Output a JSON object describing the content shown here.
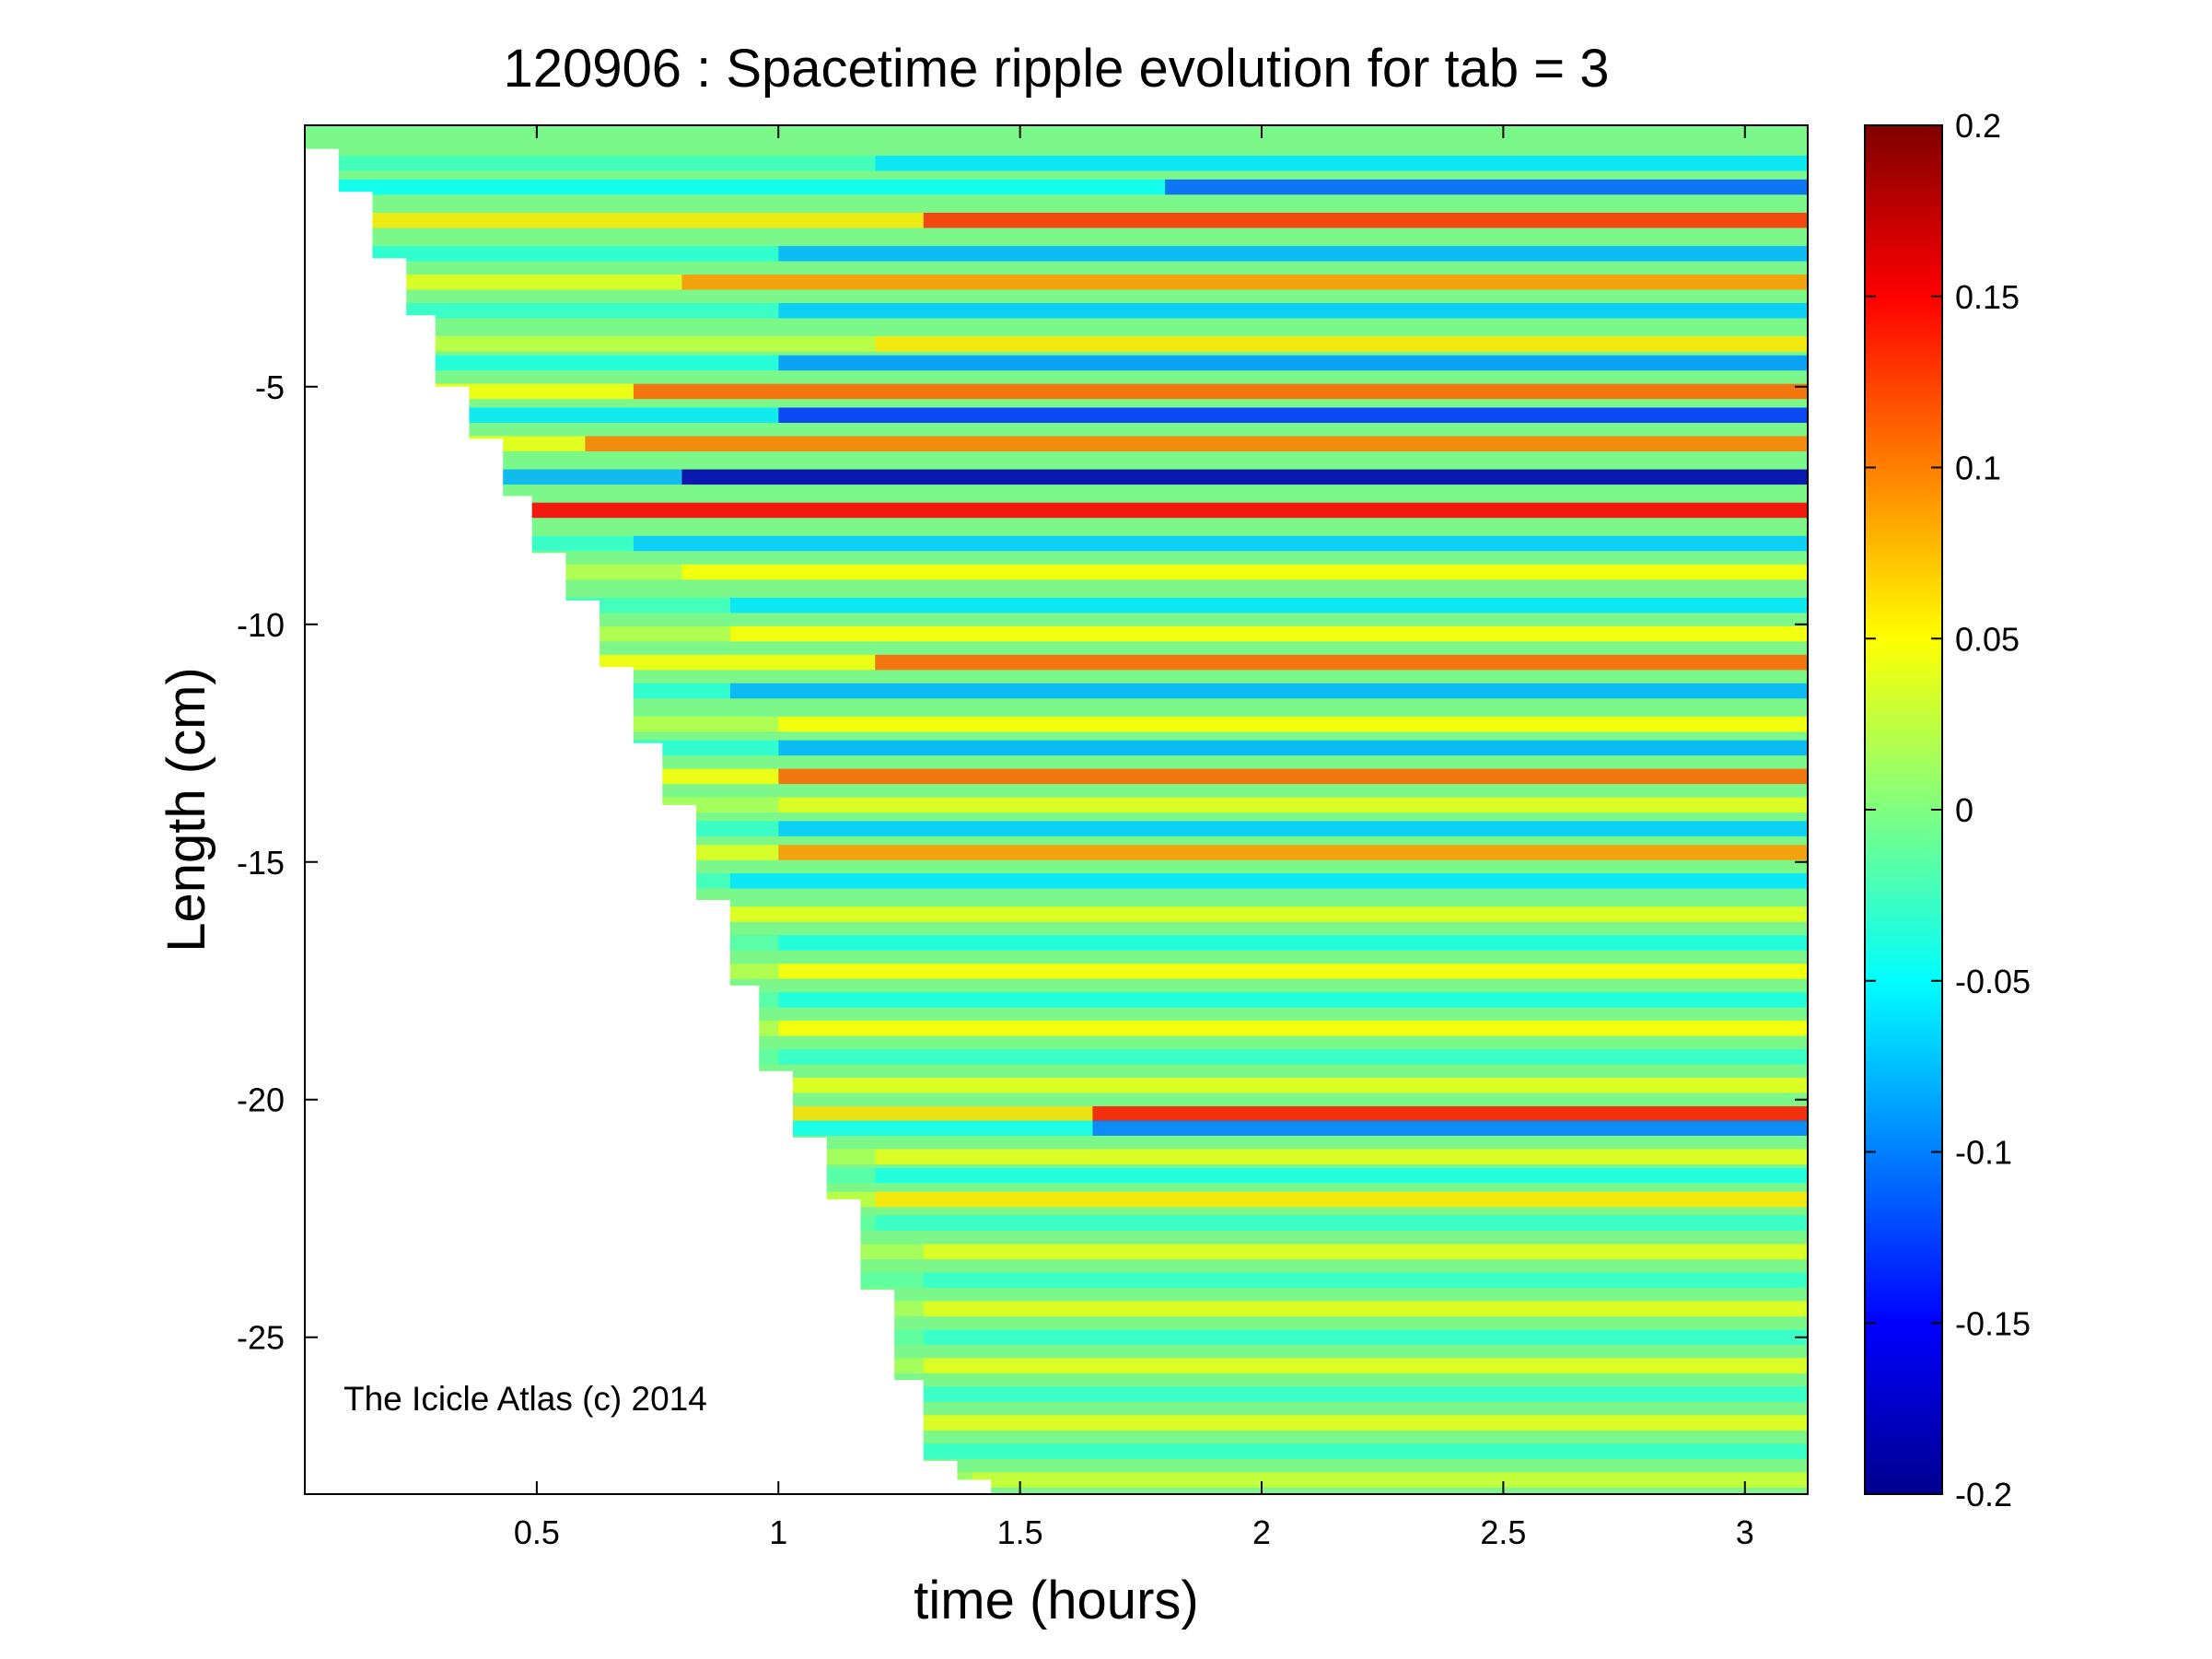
{
  "chart_data": {
    "type": "heatmap",
    "title": "120906 : Spacetime ripple evolution for tab = 3",
    "xlabel": "time (hours)",
    "ylabel": "Length (cm)",
    "xlim": [
      0.02,
      3.13
    ],
    "ylim": [
      -28.3,
      0.5
    ],
    "xticks": [
      0.5,
      1,
      1.5,
      2,
      2.5,
      3
    ],
    "xtick_labels": [
      "0.5",
      "1",
      "1.5",
      "2",
      "2.5",
      "3"
    ],
    "yticks": [
      -5,
      -10,
      -15,
      -20,
      -25
    ],
    "ytick_labels": [
      "-5",
      "-10",
      "-15",
      "-20",
      "-25"
    ],
    "colormap": "jet",
    "clim": [
      -0.2,
      0.2
    ],
    "colorbar_ticks": [
      0.2,
      0.15,
      0.1,
      0.05,
      0,
      -0.05,
      -0.1,
      -0.15,
      -0.2
    ],
    "colorbar_tick_labels": [
      "0.2",
      "0.15",
      "0.1",
      "0.05",
      "0",
      "-0.05",
      "-0.1",
      "-0.15",
      "-0.2"
    ],
    "annotation": "The Icicle Atlas (c) 2014",
    "tip_growth": [
      {
        "time": 0.02,
        "length": 0.0
      },
      {
        "time": 0.09,
        "length": -0.9
      },
      {
        "time": 0.16,
        "length": -2.3
      },
      {
        "time": 0.23,
        "length": -3.5
      },
      {
        "time": 0.29,
        "length": -5.0
      },
      {
        "time": 0.36,
        "length": -6.1
      },
      {
        "time": 0.43,
        "length": -7.3
      },
      {
        "time": 0.49,
        "length": -8.5
      },
      {
        "time": 0.56,
        "length": -9.5
      },
      {
        "time": 0.63,
        "length": -10.9
      },
      {
        "time": 0.7,
        "length": -12.5
      },
      {
        "time": 0.76,
        "length": -13.8
      },
      {
        "time": 0.83,
        "length": -15.8
      },
      {
        "time": 0.9,
        "length": -17.6
      },
      {
        "time": 0.96,
        "length": -19.4
      },
      {
        "time": 1.03,
        "length": -20.8
      },
      {
        "time": 1.1,
        "length": -22.1
      },
      {
        "time": 1.17,
        "length": -24.0
      },
      {
        "time": 1.24,
        "length": -25.9
      },
      {
        "time": 1.3,
        "length": -27.6
      },
      {
        "time": 1.37,
        "length": -28.0
      },
      {
        "time": 1.44,
        "length": -28.3
      }
    ],
    "ripple_bands": [
      {
        "length": -0.3,
        "amplitude": -0.06,
        "onset": 1.2
      },
      {
        "length": -0.8,
        "amplitude": -0.11,
        "onset": 1.8
      },
      {
        "length": -1.5,
        "amplitude": 0.13,
        "onset": 1.3
      },
      {
        "length": -2.2,
        "amplitude": -0.08,
        "onset": 1.0
      },
      {
        "length": -2.8,
        "amplitude": 0.09,
        "onset": 0.8
      },
      {
        "length": -3.4,
        "amplitude": -0.07,
        "onset": 1.0
      },
      {
        "length": -4.1,
        "amplitude": 0.06,
        "onset": 1.2
      },
      {
        "length": -4.5,
        "amplitude": -0.09,
        "onset": 1.0
      },
      {
        "length": -5.1,
        "amplitude": 0.11,
        "onset": 0.7
      },
      {
        "length": -5.6,
        "amplitude": -0.13,
        "onset": 1.0
      },
      {
        "length": -6.2,
        "amplitude": 0.1,
        "onset": 0.6
      },
      {
        "length": -6.9,
        "amplitude": -0.18,
        "onset": 0.8
      },
      {
        "length": -7.6,
        "amplitude": 0.15,
        "onset": 0.4
      },
      {
        "length": -8.3,
        "amplitude": -0.07,
        "onset": 0.7
      },
      {
        "length": -8.9,
        "amplitude": 0.05,
        "onset": 0.8
      },
      {
        "length": -9.6,
        "amplitude": -0.06,
        "onset": 0.9
      },
      {
        "length": -10.2,
        "amplitude": 0.05,
        "onset": 0.9
      },
      {
        "length": -10.8,
        "amplitude": 0.11,
        "onset": 1.2
      },
      {
        "length": -11.4,
        "amplitude": -0.08,
        "onset": 0.9
      },
      {
        "length": -12.1,
        "amplitude": 0.05,
        "onset": 1.0
      },
      {
        "length": -12.6,
        "amplitude": -0.08,
        "onset": 1.0
      },
      {
        "length": -13.2,
        "amplitude": 0.11,
        "onset": 1.0
      },
      {
        "length": -13.8,
        "amplitude": 0.04,
        "onset": 1.0
      },
      {
        "length": -14.3,
        "amplitude": -0.07,
        "onset": 1.0
      },
      {
        "length": -14.8,
        "amplitude": 0.09,
        "onset": 1.0
      },
      {
        "length": -15.4,
        "amplitude": -0.06,
        "onset": 0.9
      },
      {
        "length": -16.1,
        "amplitude": 0.04,
        "onset": 0.9
      },
      {
        "length": -16.7,
        "amplitude": -0.04,
        "onset": 1.0
      },
      {
        "length": -17.3,
        "amplitude": 0.05,
        "onset": 1.0
      },
      {
        "length": -17.9,
        "amplitude": -0.04,
        "onset": 1.0
      },
      {
        "length": -18.5,
        "amplitude": 0.05,
        "onset": 1.0
      },
      {
        "length": -19.1,
        "amplitude": -0.03,
        "onset": 1.0
      },
      {
        "length": -19.7,
        "amplitude": 0.04,
        "onset": 1.0
      },
      {
        "length": -20.3,
        "amplitude": 0.14,
        "onset": 1.65
      },
      {
        "length": -20.6,
        "amplitude": -0.1,
        "onset": 1.65
      },
      {
        "length": -21.2,
        "amplitude": 0.04,
        "onset": 1.2
      },
      {
        "length": -21.6,
        "amplitude": -0.04,
        "onset": 1.2
      },
      {
        "length": -22.1,
        "amplitude": 0.06,
        "onset": 1.2
      },
      {
        "length": -22.6,
        "amplitude": -0.03,
        "onset": 1.2
      },
      {
        "length": -23.2,
        "amplitude": 0.04,
        "onset": 1.3
      },
      {
        "length": -23.8,
        "amplitude": -0.03,
        "onset": 1.3
      },
      {
        "length": -24.4,
        "amplitude": 0.04,
        "onset": 1.3
      },
      {
        "length": -25.0,
        "amplitude": -0.03,
        "onset": 1.3
      },
      {
        "length": -25.6,
        "amplitude": 0.04,
        "onset": 1.3
      },
      {
        "length": -26.2,
        "amplitude": -0.03,
        "onset": 1.3
      },
      {
        "length": -26.8,
        "amplitude": 0.04,
        "onset": 1.3
      },
      {
        "length": -27.4,
        "amplitude": -0.03,
        "onset": 1.3
      },
      {
        "length": -28.0,
        "amplitude": 0.03,
        "onset": 1.4
      }
    ],
    "grid": false
  }
}
